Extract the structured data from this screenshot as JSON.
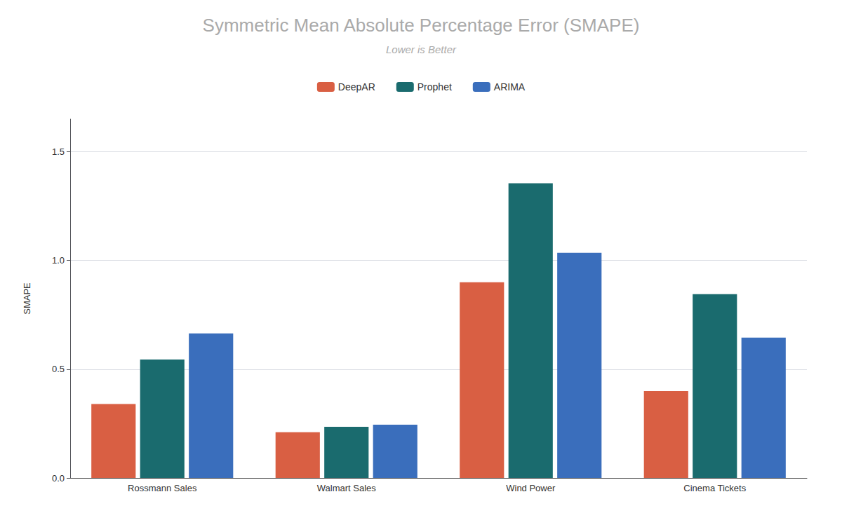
{
  "chart_data": {
    "type": "bar",
    "title": "Symmetric Mean Absolute Percentage Error (SMAPE)",
    "subtitle": "Lower is Better",
    "ylabel": "SMAPE",
    "categories": [
      "Rossmann Sales",
      "Walmart Sales",
      "Wind Power",
      "Cinema Tickets"
    ],
    "series": [
      {
        "name": "DeepAR",
        "color": "#d95f43",
        "values": [
          0.34,
          0.21,
          0.9,
          0.4
        ]
      },
      {
        "name": "Prophet",
        "color": "#1a6b6e",
        "values": [
          0.545,
          0.235,
          1.355,
          0.845
        ]
      },
      {
        "name": "ARIMA",
        "color": "#3a6ebc",
        "values": [
          0.665,
          0.245,
          1.035,
          0.645
        ]
      }
    ],
    "ylim": [
      0,
      1.65
    ],
    "yticks": [
      {
        "value": 0,
        "label": "0.0"
      },
      0.5,
      {
        "value": 1,
        "label": "1.0"
      },
      1.5
    ],
    "grid": true,
    "legend": "top"
  }
}
